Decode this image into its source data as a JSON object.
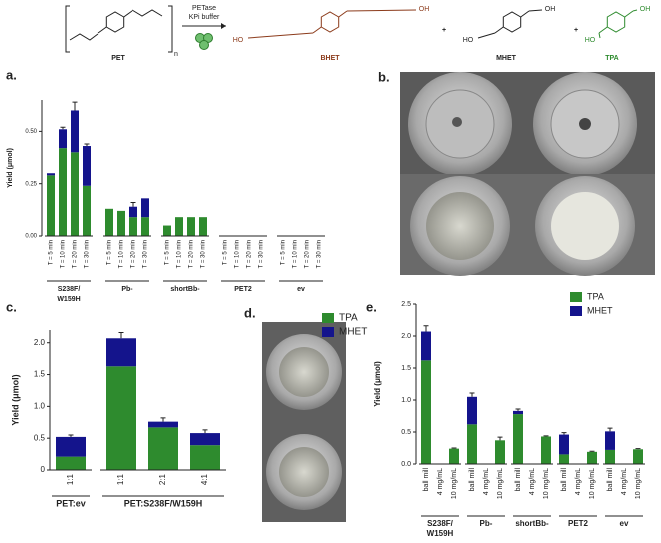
{
  "scheme": {
    "pet": "PET",
    "n": "n",
    "enzyme": "PETase",
    "buffer": "KPi buffer",
    "plus": [
      "+",
      "+"
    ],
    "products": [
      {
        "name": "BHET",
        "color": "#8b3a1a",
        "ends": [
          "HO",
          "OH"
        ]
      },
      {
        "name": "MHET",
        "color": "#222222",
        "ends": [
          "HO",
          "OH"
        ]
      },
      {
        "name": "TPA",
        "color": "#2e8b2e",
        "ends": [
          "HO",
          "OH"
        ]
      }
    ]
  },
  "panels": [
    "a.",
    "b.",
    "c.",
    "d.",
    "e."
  ],
  "chart_data": [
    {
      "type": "bar",
      "stacked": true,
      "ylabel": "Yield (μmol)",
      "ylim": [
        0,
        0.65
      ],
      "yticks": [
        {
          "value": 0,
          "label": "0.00"
        },
        {
          "value": 0.25,
          "label": "0.25"
        },
        {
          "value": 0.5,
          "label": "0.50"
        }
      ],
      "groups": [
        {
          "name": [
            "S238F/",
            "W159H"
          ],
          "categories": [
            "T = 5 min",
            "T = 10 min",
            "T = 20 min",
            "T = 30 min"
          ]
        },
        {
          "name": "Pb-",
          "categories": [
            "T = 5 min",
            "T = 10 min",
            "T = 20 min",
            "T = 30 min"
          ]
        },
        {
          "name": "shortBb-",
          "categories": [
            "T = 5 min",
            "T = 10 min",
            "T = 20 min",
            "T = 30 min"
          ]
        },
        {
          "name": "PET2",
          "categories": [
            "T = 5 min",
            "T = 10 min",
            "T = 20 min",
            "T = 30 min"
          ]
        },
        {
          "name": "ev",
          "categories": [
            "T = 5 min",
            "T = 10 min",
            "T = 20 min",
            "T = 30 min"
          ]
        }
      ],
      "series": [
        {
          "color": "#2e8b2e",
          "values": [
            0.29,
            0.42,
            0.4,
            0.24,
            0.13,
            0.12,
            0.09,
            0.09,
            0.05,
            0.09,
            0.09,
            0.09,
            0,
            0,
            0,
            0,
            0,
            0,
            0,
            0
          ]
        },
        {
          "color": "#14148c",
          "values": [
            0.01,
            0.09,
            0.2,
            0.19,
            0,
            0,
            0.05,
            0.09,
            0,
            0,
            0,
            0,
            0,
            0,
            0,
            0,
            0,
            0,
            0,
            0
          ],
          "errors": [
            null,
            0.01,
            0.04,
            0.01,
            null,
            null,
            0.02,
            null,
            null,
            null,
            null,
            null,
            null,
            null,
            null,
            null,
            null,
            null,
            null,
            null
          ]
        }
      ]
    },
    {
      "type": "bar",
      "stacked": true,
      "ylabel": "Yield (μmol)",
      "ylim": [
        0,
        2.2
      ],
      "legend": "upper right",
      "yticks": [
        0,
        0.5,
        {
          "value": 1,
          "label": "1.0"
        },
        1.5,
        {
          "value": 2,
          "label": "2.0"
        }
      ],
      "groups": [
        {
          "name": "PET:ev",
          "categories": [
            "1:1"
          ]
        },
        {
          "name": "PET:S238F/W159H",
          "categories": [
            "1:1",
            "2:1",
            "4:1"
          ]
        }
      ],
      "series": [
        {
          "name": "TPA",
          "color": "#2e8b2e",
          "values": [
            0.21,
            1.63,
            0.67,
            0.39
          ]
        },
        {
          "name": "MHET",
          "color": "#14148c",
          "values": [
            0.31,
            0.44,
            0.09,
            0.19
          ],
          "errors": [
            0.03,
            0.09,
            0.06,
            0.05
          ]
        }
      ]
    },
    {
      "type": "bar",
      "stacked": true,
      "ylabel": "Yield (μmol)",
      "ylim": [
        0,
        2.5
      ],
      "legend": "upper right",
      "yticks": [
        {
          "value": 0,
          "label": "0.0"
        },
        0.5,
        {
          "value": 1,
          "label": "1.0"
        },
        1.5,
        {
          "value": 2,
          "label": "2.0"
        },
        2.5
      ],
      "groups": [
        {
          "name": [
            "S238F/",
            "W159H"
          ],
          "categories": [
            "ball mill",
            "4 mg/mL",
            "10 mg/mL"
          ]
        },
        {
          "name": "Pb-",
          "categories": [
            "ball mill",
            "4 mg/mL",
            "10 mg/mL"
          ]
        },
        {
          "name": "shortBb-",
          "categories": [
            "ball mill",
            "4 mg/mL",
            "10 mg/mL"
          ]
        },
        {
          "name": "PET2",
          "categories": [
            "ball mill",
            "4 mg/mL",
            "10 mg/mL"
          ]
        },
        {
          "name": "ev",
          "categories": [
            "ball mill",
            "4 mg/mL",
            "10 mg/mL"
          ]
        }
      ],
      "series": [
        {
          "name": "TPA",
          "color": "#2e8b2e",
          "values": [
            1.62,
            0,
            0.24,
            0.62,
            0,
            0.37,
            0.78,
            0,
            0.43,
            0.15,
            0,
            0.19,
            0.22,
            0,
            0.23
          ]
        },
        {
          "name": "MHET",
          "color": "#14148c",
          "values": [
            0.45,
            0,
            0,
            0.43,
            0,
            0,
            0.05,
            0,
            0,
            0.31,
            0,
            0,
            0.29,
            0,
            0
          ],
          "errors": [
            0.09,
            null,
            0.01,
            0.06,
            null,
            0.05,
            0.03,
            null,
            0.01,
            0.03,
            null,
            0.01,
            0.05,
            null,
            0.01
          ]
        }
      ]
    }
  ]
}
